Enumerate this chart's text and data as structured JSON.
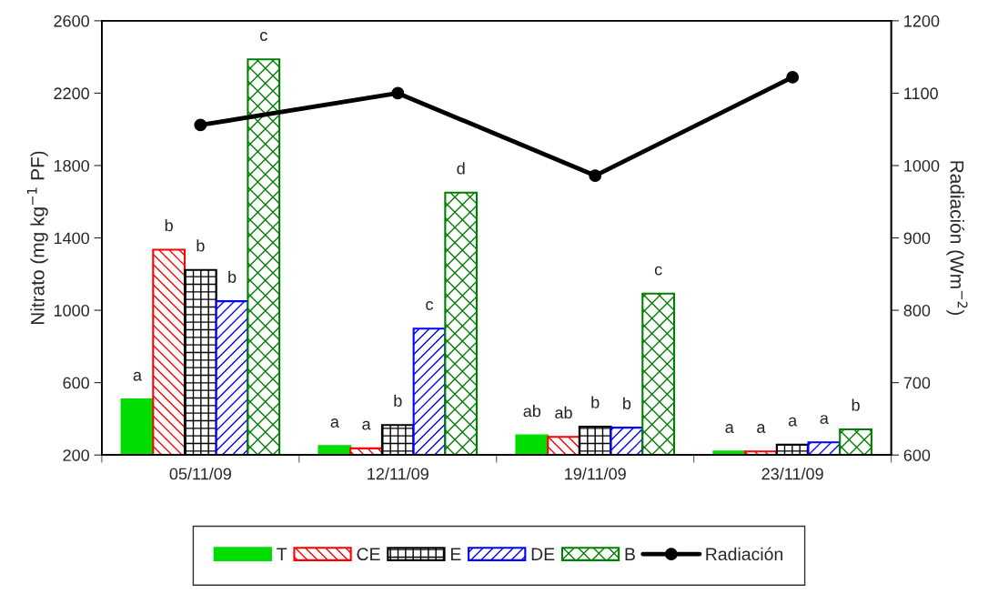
{
  "chart_data": {
    "type": "bar",
    "categories": [
      "05/11/09",
      "12/11/09",
      "19/11/09",
      "23/11/09"
    ],
    "ylabel": "Nitrato (mg kg$^{−1}$ PF)",
    "y2label": "Radiación (Wm$^{−2}$)",
    "ylim": [
      200,
      2600
    ],
    "yticks": [
      200,
      600,
      1000,
      1400,
      1800,
      2200,
      2600
    ],
    "y2lim": [
      600,
      1200
    ],
    "y2ticks": [
      600,
      700,
      800,
      900,
      1000,
      1100,
      1200
    ],
    "grid": false,
    "legend": "bottom",
    "series": [
      {
        "name": "T",
        "color": "#00dd00",
        "values": [
          508,
          250,
          309,
          220
        ],
        "value_labels": [
          "a",
          "a",
          "ab",
          "a"
        ]
      },
      {
        "name": "CE",
        "color": "#ff0000",
        "values": [
          1335,
          237,
          300,
          220
        ],
        "value_labels": [
          "b",
          "a",
          "ab",
          "a"
        ]
      },
      {
        "name": "E",
        "color": "#000000",
        "values": [
          1223,
          366,
          357,
          257
        ],
        "value_labels": [
          "b",
          "b",
          "b",
          "a"
        ]
      },
      {
        "name": "DE",
        "color": "#0000ff",
        "values": [
          1050,
          899,
          351,
          270
        ],
        "value_labels": [
          "b",
          "c",
          "b",
          "a"
        ]
      },
      {
        "name": "B",
        "color": "#008000",
        "values": [
          2387,
          1650,
          1092,
          342
        ],
        "value_labels": [
          "c",
          "d",
          "c",
          "b"
        ]
      },
      {
        "name": "Radiación",
        "type": "line",
        "axis": "y2",
        "color": "#000000",
        "marker": "circle",
        "line_style": "solid",
        "values": [
          1056,
          1100,
          986,
          1122
        ]
      }
    ]
  }
}
